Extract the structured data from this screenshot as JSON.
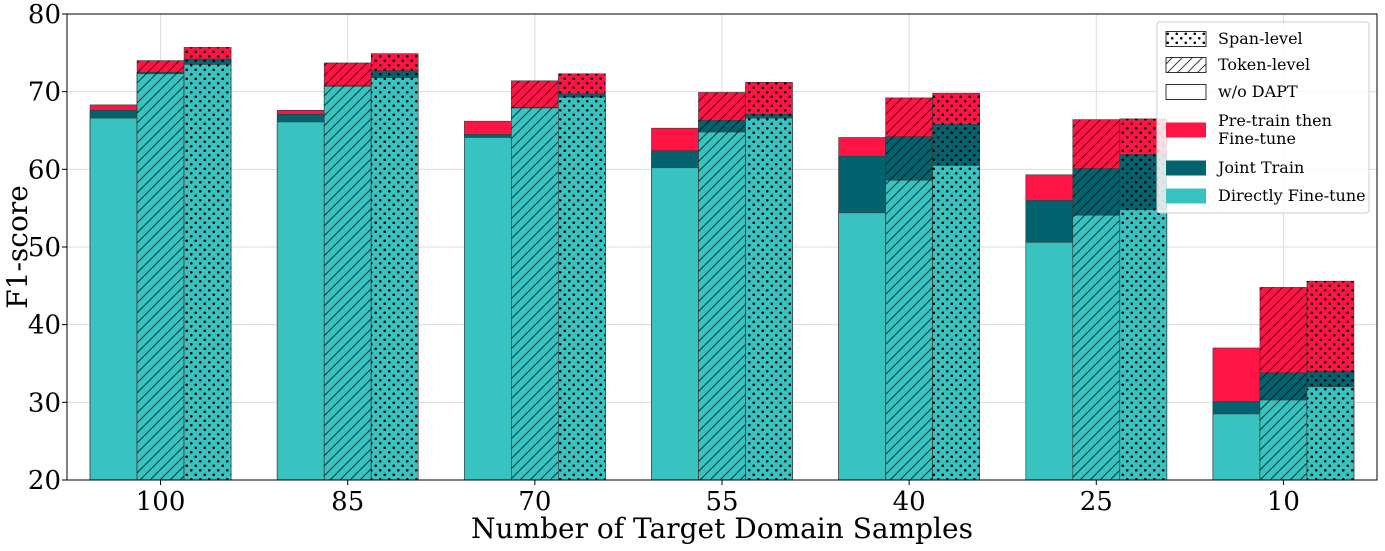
{
  "chart_data": {
    "type": "bar",
    "title": "",
    "xlabel": "Number of Target Domain Samples",
    "ylabel": "F1-score",
    "ylim": [
      20,
      80
    ],
    "yticks": [
      20,
      30,
      40,
      50,
      60,
      70,
      80
    ],
    "grid": true,
    "stacked": true,
    "legend_position": "top-right",
    "categories": [
      "100",
      "85",
      "70",
      "55",
      "40",
      "25",
      "10"
    ],
    "variants": [
      {
        "name": "w/o DAPT",
        "hatch": "none"
      },
      {
        "name": "Token-level",
        "hatch": "diagonal"
      },
      {
        "name": "Span-level",
        "hatch": "dots"
      }
    ],
    "series": [
      {
        "name": "Directly Fine-tune",
        "color": "#38c2c0",
        "values": [
          [
            66.6,
            72.3,
            73.5
          ],
          [
            66.1,
            70.7,
            71.8
          ],
          [
            64.1,
            67.9,
            69.3
          ],
          [
            60.2,
            64.8,
            66.6
          ],
          [
            54.4,
            58.6,
            60.5
          ],
          [
            50.6,
            54.1,
            54.8
          ],
          [
            28.5,
            30.3,
            32.0
          ]
        ]
      },
      {
        "name": "Joint Train",
        "color": "#02636e",
        "values": [
          [
            67.6,
            72.5,
            74.2
          ],
          [
            67.1,
            70.8,
            72.7
          ],
          [
            64.5,
            68.0,
            69.7
          ],
          [
            62.4,
            66.3,
            67.1
          ],
          [
            61.7,
            64.2,
            65.8
          ],
          [
            56.0,
            60.1,
            61.9
          ],
          [
            30.1,
            33.8,
            34.0
          ]
        ]
      },
      {
        "name": "Pre-train then Fine-tune",
        "color": "#ff1446",
        "values": [
          [
            68.3,
            74.0,
            75.7
          ],
          [
            67.6,
            73.7,
            74.9
          ],
          [
            66.2,
            71.4,
            72.3
          ],
          [
            65.3,
            69.9,
            71.2
          ],
          [
            64.1,
            69.2,
            69.8
          ],
          [
            59.3,
            66.4,
            66.5
          ],
          [
            37.0,
            44.8,
            45.6
          ]
        ]
      }
    ],
    "legend": [
      {
        "label": "Span-level",
        "kind": "hatch",
        "hatch": "dots"
      },
      {
        "label": "Token-level",
        "kind": "hatch",
        "hatch": "diagonal"
      },
      {
        "label": "w/o DAPT",
        "kind": "hatch",
        "hatch": "none"
      },
      {
        "label": "Pre-train then\nFine-tune",
        "kind": "color",
        "color": "#ff1446"
      },
      {
        "label": "Joint Train",
        "kind": "color",
        "color": "#02636e"
      },
      {
        "label": "Directly Fine-tune",
        "kind": "color",
        "color": "#38c2c0"
      }
    ]
  }
}
